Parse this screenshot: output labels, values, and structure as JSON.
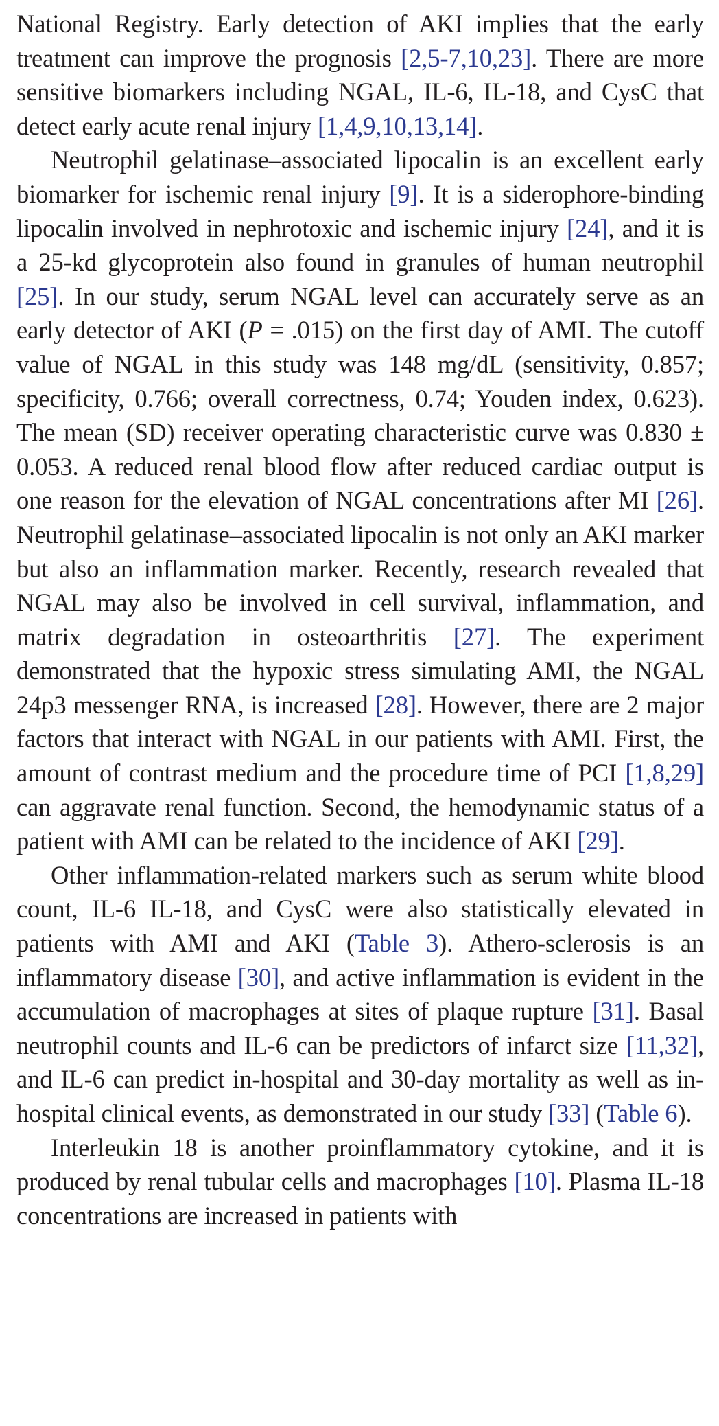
{
  "article": {
    "paragraphs": [
      {
        "indent": false,
        "segments": [
          {
            "t": "text",
            "v": "National Registry. Early detection of AKI implies that the early treatment can improve the prognosis "
          },
          {
            "t": "ref",
            "v": "[2,5-7,10,23]"
          },
          {
            "t": "text",
            "v": ". There are more sensitive biomarkers including NGAL, IL-6, IL-18, and CysC that detect early acute renal injury "
          },
          {
            "t": "ref",
            "v": "[1,4,9,10,13,14]"
          },
          {
            "t": "text",
            "v": "."
          }
        ]
      },
      {
        "indent": true,
        "segments": [
          {
            "t": "text",
            "v": "Neutrophil gelatinase–associated lipocalin is an excellent early biomarker for ischemic renal injury "
          },
          {
            "t": "ref",
            "v": "[9]"
          },
          {
            "t": "text",
            "v": ". It is a siderophore-binding lipocalin involved in nephrotoxic and ischemic injury "
          },
          {
            "t": "ref",
            "v": "[24]"
          },
          {
            "t": "text",
            "v": ", and it is a 25-kd glycoprotein also found in granules of human neutrophil "
          },
          {
            "t": "ref",
            "v": "[25]"
          },
          {
            "t": "text",
            "v": ". In our study, serum NGAL level can accurately serve as an early detector of AKI ("
          },
          {
            "t": "italic",
            "v": "P"
          },
          {
            "t": "text",
            "v": " = .015) on the first day of AMI. The cutoff value of NGAL in this study was 148 mg/dL (sensitivity, 0.857; specificity, 0.766; overall correctness, 0.74; Youden index, 0.623). The mean (SD) receiver operating characteristic curve was 0.830 ± 0.053. A reduced renal blood flow after reduced cardiac output is one reason for the elevation of NGAL concentrations after MI "
          },
          {
            "t": "ref",
            "v": "[26]"
          },
          {
            "t": "text",
            "v": ". Neutrophil gelatinase–associated lipocalin is not only an AKI marker but also an inflammation marker. Recently, research revealed that NGAL may also be involved in cell survival, inflammation, and matrix degradation in osteoarthritis "
          },
          {
            "t": "ref",
            "v": "[27]"
          },
          {
            "t": "text",
            "v": ". The experiment demonstrated that the hypoxic stress simulating AMI, the NGAL 24p3 messenger RNA, is increased "
          },
          {
            "t": "ref",
            "v": "[28]"
          },
          {
            "t": "text",
            "v": ". However, there are 2 major factors that interact with NGAL in our patients with AMI. First, the amount of contrast medium and the procedure time of PCI "
          },
          {
            "t": "ref",
            "v": "[1,8,29]"
          },
          {
            "t": "text",
            "v": " can aggravate renal function. Second, the hemodynamic status of a patient with AMI can be related to the incidence of AKI "
          },
          {
            "t": "ref",
            "v": "[29]"
          },
          {
            "t": "text",
            "v": "."
          }
        ]
      },
      {
        "indent": true,
        "segments": [
          {
            "t": "text",
            "v": "Other inflammation-related markers such as serum white blood count, IL-6 IL-18, and CysC were also statistically elevated in patients with AMI and AKI ("
          },
          {
            "t": "link",
            "v": "Table 3"
          },
          {
            "t": "text",
            "v": "). Athero-sclerosis is an inflammatory disease "
          },
          {
            "t": "ref",
            "v": "[30]"
          },
          {
            "t": "text",
            "v": ", and active inflammation is evident in the accumulation of macrophages at sites of plaque rupture "
          },
          {
            "t": "ref",
            "v": "[31]"
          },
          {
            "t": "text",
            "v": ". Basal neutrophil counts and IL-6 can be predictors of infarct size "
          },
          {
            "t": "ref",
            "v": "[11,32]"
          },
          {
            "t": "text",
            "v": ", and IL-6 can predict in-hospital and 30-day mortality as well as in-hospital clinical events, as demonstrated in our study "
          },
          {
            "t": "ref",
            "v": "[33]"
          },
          {
            "t": "text",
            "v": " ("
          },
          {
            "t": "link",
            "v": "Table 6"
          },
          {
            "t": "text",
            "v": ")."
          }
        ]
      },
      {
        "indent": true,
        "segments": [
          {
            "t": "text",
            "v": "Interleukin 18 is another proinflammatory cytokine, and it is produced by renal tubular cells and macrophages "
          },
          {
            "t": "ref",
            "v": "[10]"
          },
          {
            "t": "text",
            "v": ". Plasma IL-18 concentrations are increased in patients with"
          }
        ]
      }
    ]
  }
}
